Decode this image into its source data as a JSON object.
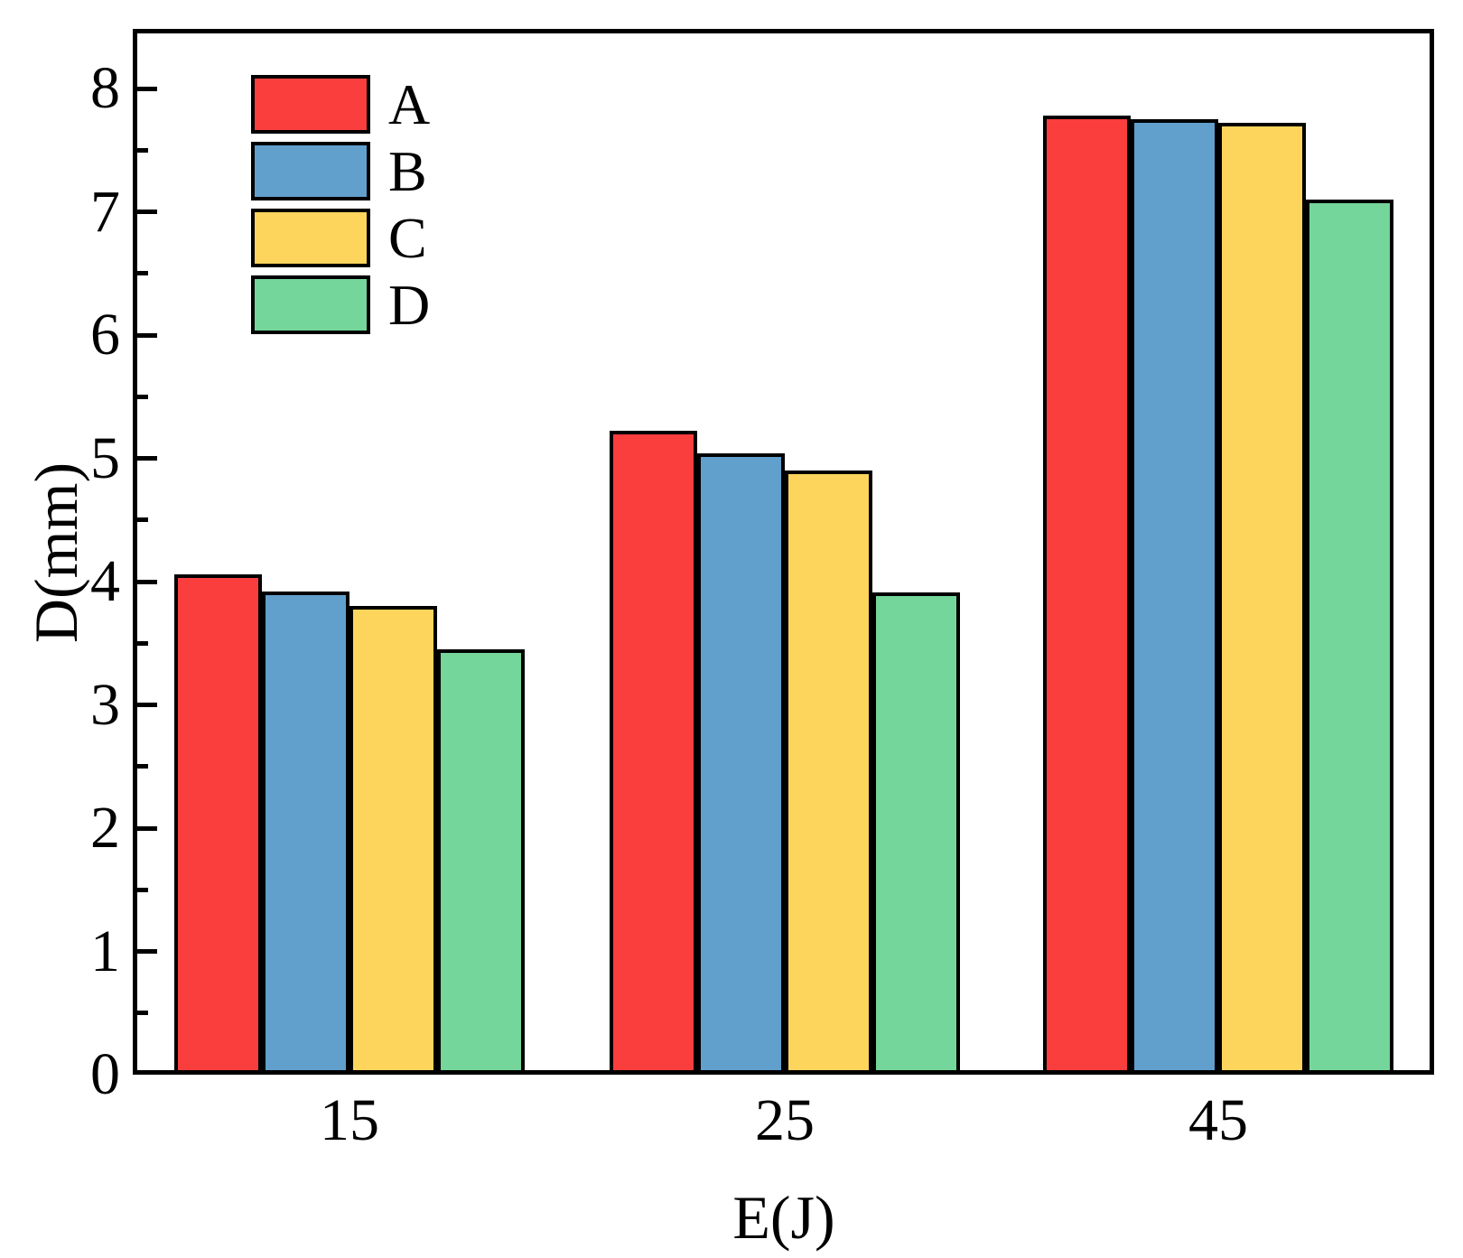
{
  "chart_data": {
    "type": "bar",
    "categories": [
      "15",
      "25",
      "45"
    ],
    "series": [
      {
        "name": "A",
        "color": "#FA3E3E",
        "values": [
          4.06,
          5.22,
          7.78
        ]
      },
      {
        "name": "B",
        "color": "#619FCC",
        "values": [
          3.92,
          5.04,
          7.75
        ]
      },
      {
        "name": "C",
        "color": "#FDD55C",
        "values": [
          3.8,
          4.9,
          7.72
        ]
      },
      {
        "name": "D",
        "color": "#74D69A",
        "values": [
          3.45,
          3.91,
          7.1
        ]
      }
    ],
    "title": "",
    "xlabel": "E(J)",
    "ylabel": "D(mm)",
    "ylim": [
      0,
      8.48
    ],
    "yticks_major": [
      0,
      1,
      2,
      3,
      4,
      5,
      6,
      7,
      8
    ],
    "yticks_minor": [
      0.5,
      1.5,
      2.5,
      3.5,
      4.5,
      5.5,
      6.5,
      7.5
    ],
    "grid": "off",
    "legend_position": "top-left",
    "bar_edge_color": "#000000",
    "frame_color": "#000000"
  }
}
